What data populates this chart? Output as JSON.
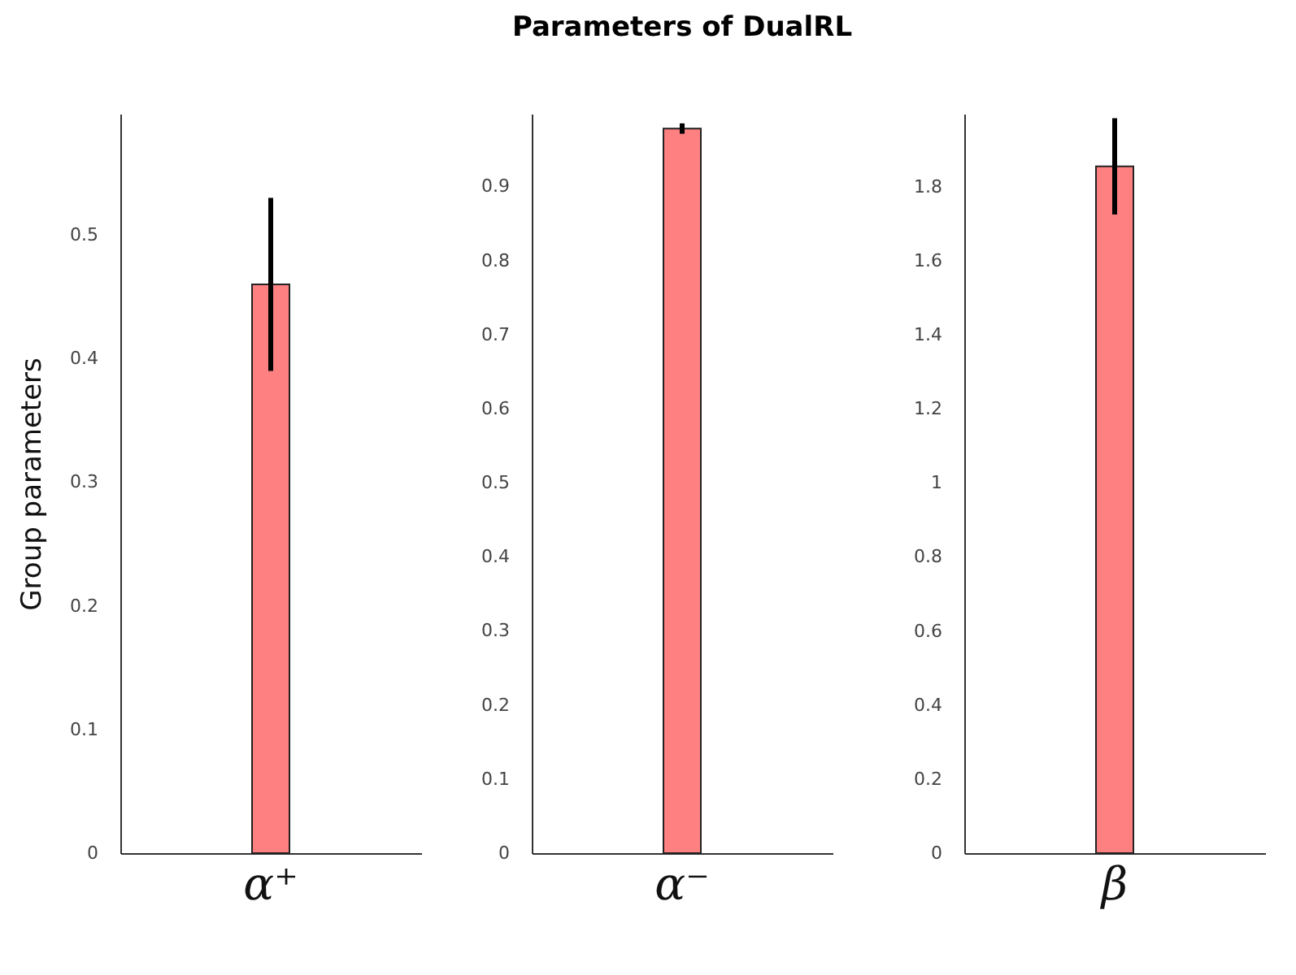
{
  "chart_data": [
    {
      "type": "bar",
      "ylabel": "Group parameters",
      "categories": [
        "α⁺"
      ],
      "values": [
        0.46
      ],
      "errors": [
        0.07
      ],
      "color": "#ff8080",
      "ylim": [
        0,
        0.598
      ],
      "yticks": [
        0,
        0.1,
        0.2,
        0.3,
        0.4,
        0.5
      ],
      "grid": false
    },
    {
      "type": "bar",
      "title": "Parameters of DualRL",
      "categories": [
        "α⁻"
      ],
      "values": [
        0.978
      ],
      "errors": [
        0.007
      ],
      "color": "#ff8080",
      "ylim": [
        0,
        0.998
      ],
      "yticks": [
        0,
        0.1,
        0.2,
        0.3,
        0.4,
        0.5,
        0.6,
        0.7,
        0.8,
        0.9
      ],
      "grid": false
    },
    {
      "type": "bar",
      "categories": [
        "β"
      ],
      "values": [
        1.855
      ],
      "errors": [
        0.13
      ],
      "color": "#ff8080",
      "ylim": [
        0,
        1.997
      ],
      "yticks": [
        0,
        0.2,
        0.4,
        0.6,
        0.8,
        1,
        1.2,
        1.4,
        1.6,
        1.8
      ],
      "grid": false
    }
  ]
}
